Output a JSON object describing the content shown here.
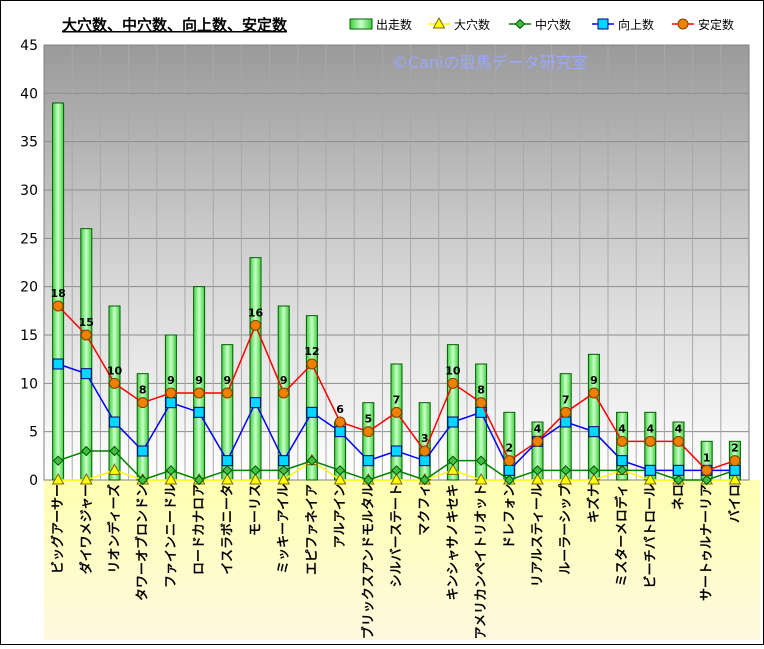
{
  "chart_data": {
    "type": "bar",
    "title": "大穴数、中穴数、向上数、安定数",
    "watermark": "©Caniの競馬データ研究室",
    "ylim": [
      0,
      45
    ],
    "y_ticks": [
      0,
      5,
      10,
      15,
      20,
      25,
      30,
      35,
      40,
      45
    ],
    "grid": true,
    "legend_position": "top-right",
    "categories": [
      "ビッグアーサー",
      "ダイワメジャー",
      "リオンディーズ",
      "タワーオブロンドン",
      "ファインニードル",
      "ロードカナロア",
      "イスラボニータ",
      "モーリス",
      "ミッキーアイル",
      "エピファネイア",
      "アルアイン",
      "ブリックスアンドモルタル",
      "シルバーステート",
      "マクフィ",
      "キンシャサノキセキ",
      "アメリカンペイトリオット",
      "ドレフォン",
      "リアルスティール",
      "ルーラーシップ",
      "キズナ",
      "ミスターメロディ",
      "ビーチパトロール",
      "ネロ",
      "サートゥルナーリア",
      "バイロ"
    ],
    "series": [
      {
        "name": "出走数",
        "kind": "bar",
        "color": "#7fff7f",
        "values": [
          39,
          26,
          18,
          11,
          15,
          20,
          14,
          23,
          18,
          17,
          6,
          8,
          12,
          8,
          14,
          12,
          7,
          6,
          11,
          13,
          7,
          7,
          6,
          4,
          4
        ]
      },
      {
        "name": "大穴数",
        "kind": "line",
        "color": "#ffff00",
        "values": [
          0,
          0,
          1,
          0,
          0,
          0,
          0,
          0,
          0,
          2,
          0,
          0,
          0,
          0,
          1,
          0,
          0,
          0,
          0,
          0,
          1,
          0,
          0,
          0,
          0
        ]
      },
      {
        "name": "中穴数",
        "kind": "line",
        "color": "#008000",
        "values": [
          2,
          3,
          3,
          0,
          1,
          0,
          1,
          1,
          1,
          2,
          1,
          0,
          1,
          0,
          2,
          2,
          0,
          1,
          1,
          1,
          1,
          1,
          0,
          0,
          1
        ]
      },
      {
        "name": "向上数",
        "kind": "line",
        "color": "#0000ff",
        "values": [
          12,
          11,
          6,
          3,
          8,
          7,
          2,
          8,
          2,
          7,
          5,
          2,
          3,
          2,
          6,
          7,
          1,
          4,
          6,
          5,
          2,
          1,
          1,
          1,
          1
        ]
      },
      {
        "name": "安定数",
        "kind": "line",
        "color": "#ff0000",
        "values": [
          18,
          15,
          10,
          8,
          9,
          9,
          9,
          16,
          9,
          12,
          6,
          5,
          7,
          3,
          10,
          8,
          2,
          4,
          7,
          9,
          4,
          4,
          4,
          1,
          2
        ]
      }
    ]
  }
}
